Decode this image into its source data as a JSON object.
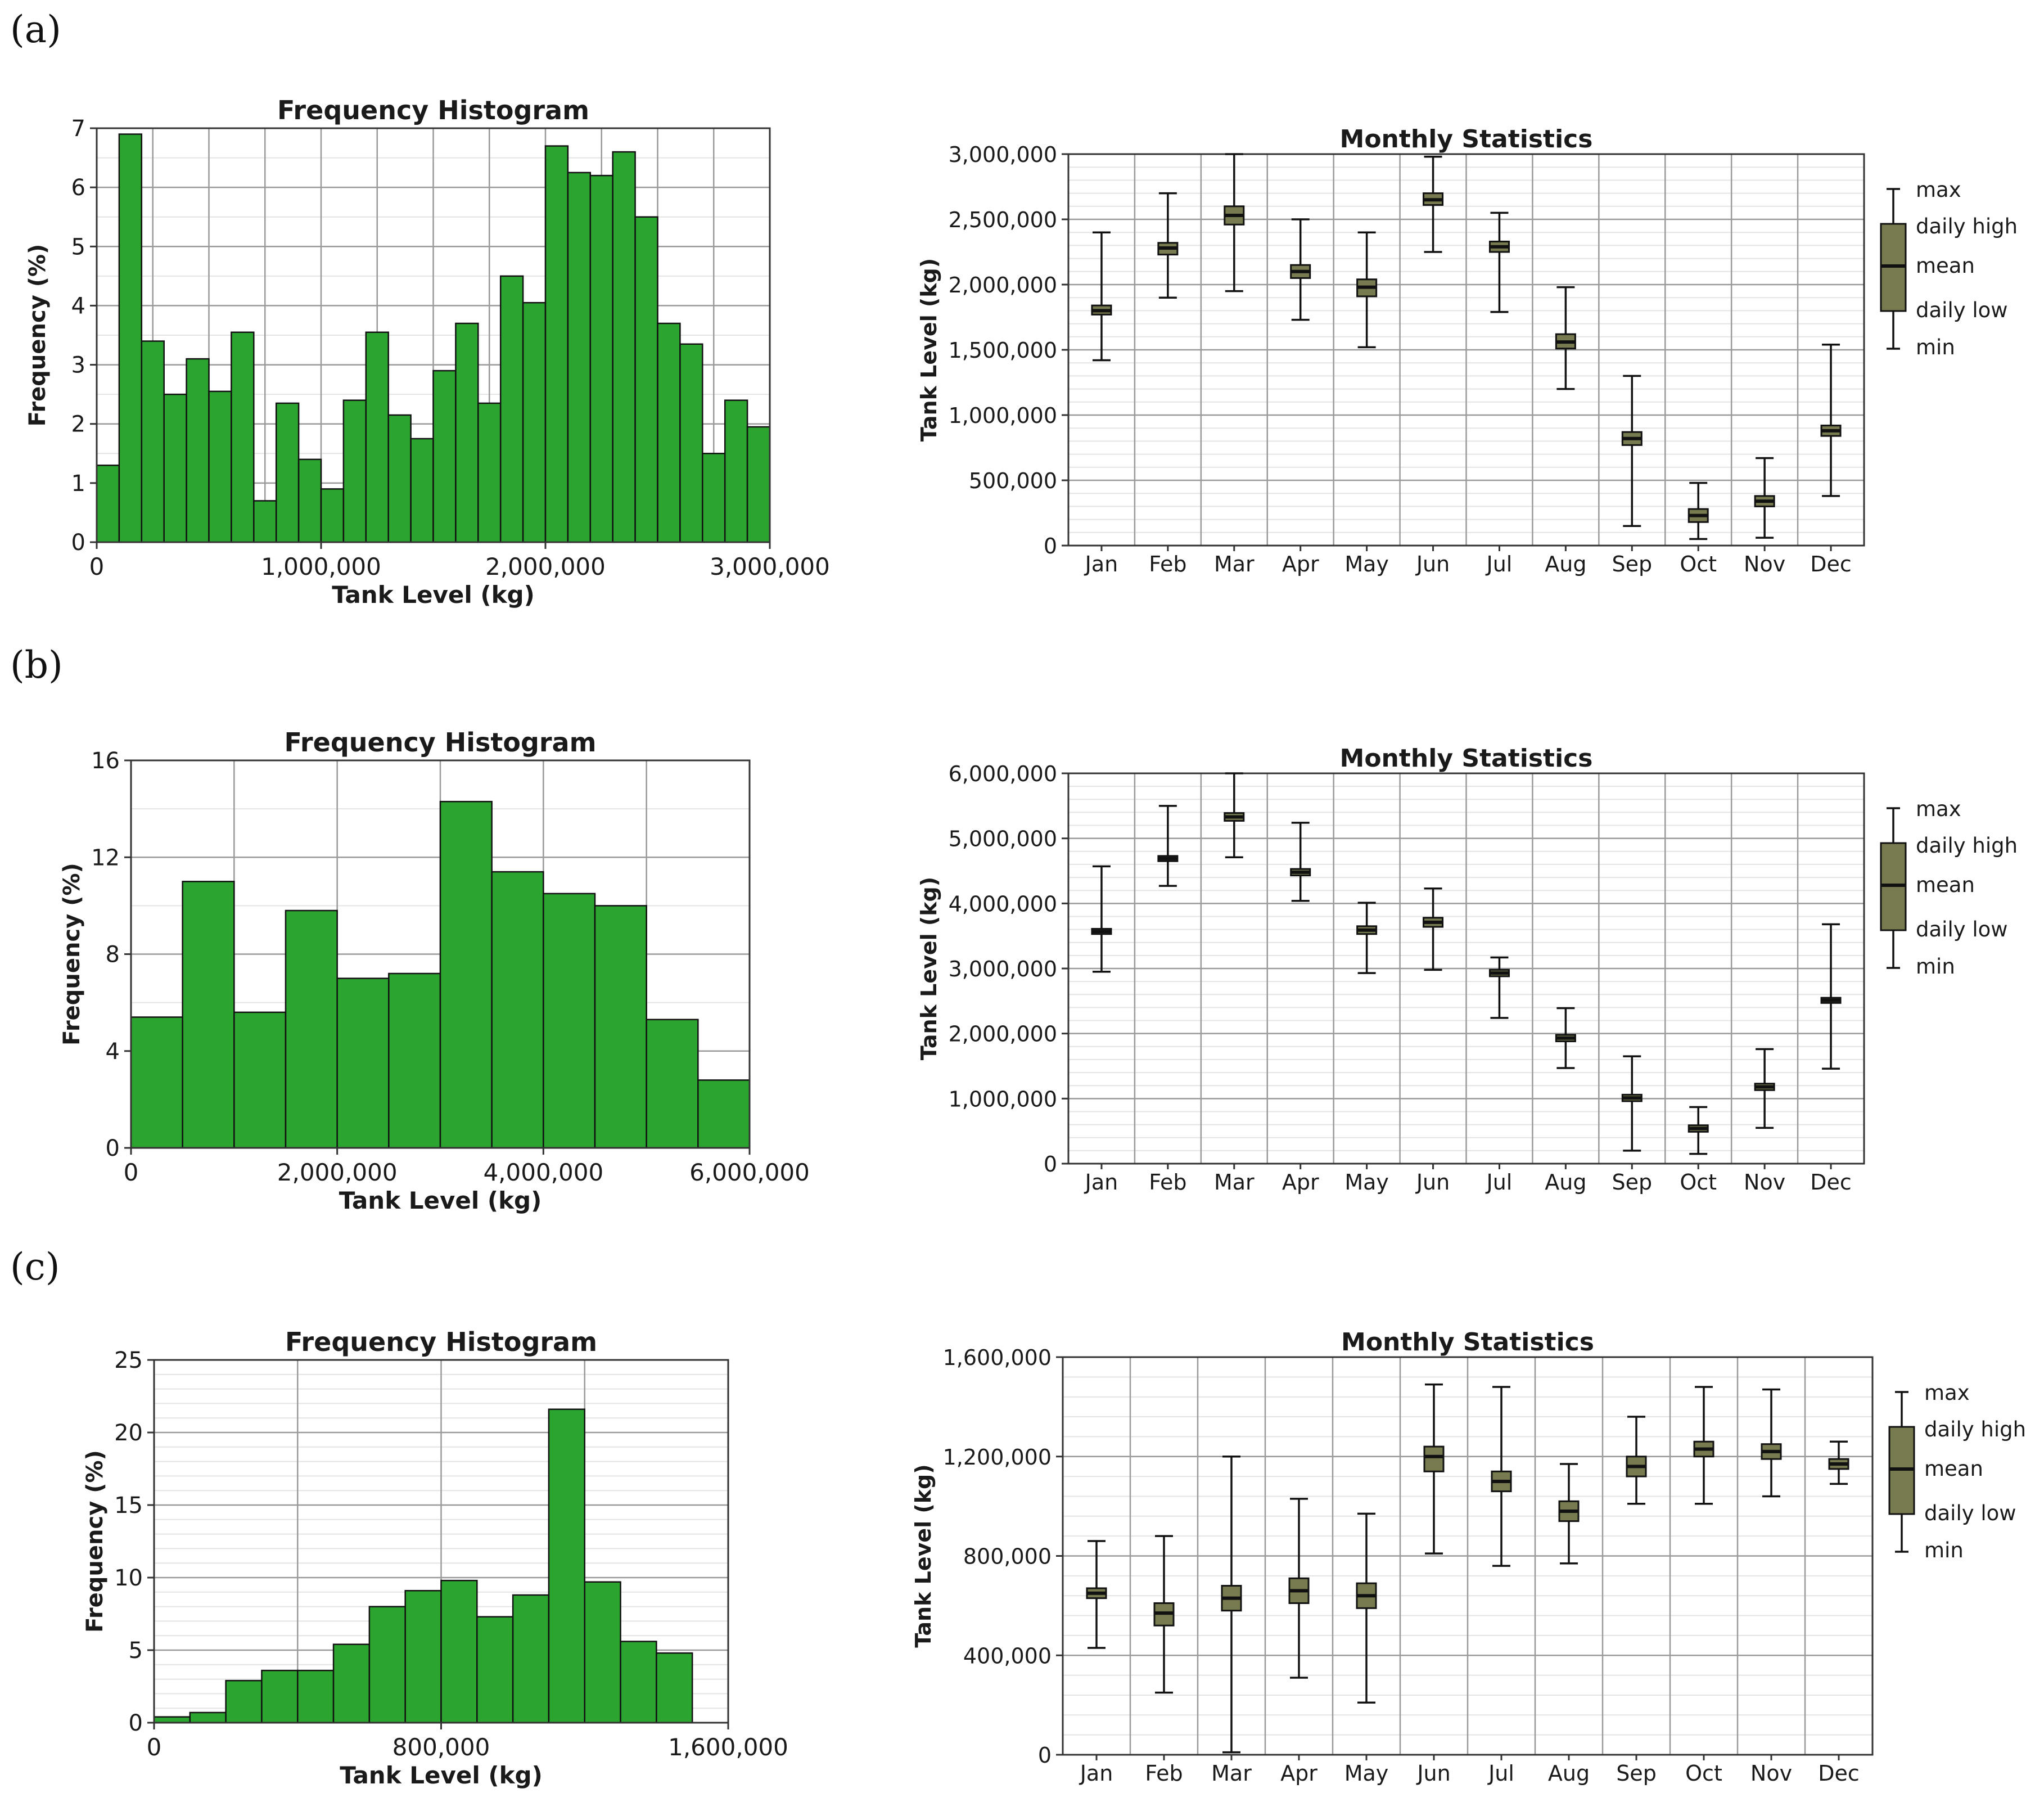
{
  "panels": [
    {
      "label": "(a)"
    },
    {
      "label": "(b)"
    },
    {
      "label": "(c)"
    }
  ],
  "colors": {
    "bar_fill": "#2ca530",
    "bar_stroke": "#111111",
    "box_fill": "#787a50",
    "grid_major": "#9a9a9a",
    "grid_minor": "#e4e4e4"
  },
  "legend": {
    "max": "max",
    "daily_high": "daily high",
    "mean": "mean",
    "daily_low": "daily low",
    "min": "min"
  },
  "chart_data": [
    {
      "id": "a-hist",
      "type": "bar",
      "title": "Frequency Histogram",
      "xlabel": "Tank Level (kg)",
      "ylabel": "Frequency (%)",
      "xlim": [
        0,
        3000000
      ],
      "ylim": [
        0,
        7
      ],
      "xticks": [
        0,
        1000000,
        2000000,
        3000000
      ],
      "xtick_labels": [
        "0",
        "1,000,000",
        "2,000,000",
        "3,000,000"
      ],
      "yticks": [
        0,
        1,
        2,
        3,
        4,
        5,
        6,
        7
      ],
      "ytick_labels": [
        "0",
        "1",
        "2",
        "3",
        "4",
        "5",
        "6",
        "7"
      ],
      "xgrid": [
        0,
        250000,
        500000,
        750000,
        1000000,
        1250000,
        1500000,
        1750000,
        2000000,
        2250000,
        2500000,
        2750000,
        3000000
      ],
      "ygrid_minor": [
        0.5,
        1.5,
        2.5,
        3.5,
        4.5,
        5.5,
        6.5
      ],
      "bin_edges": [
        0,
        100000,
        200000,
        300000,
        400000,
        500000,
        600000,
        700000,
        800000,
        900000,
        1000000,
        1100000,
        1200000,
        1300000,
        1400000,
        1500000,
        1600000,
        1700000,
        1800000,
        1900000,
        2000000,
        2100000,
        2200000,
        2300000,
        2400000,
        2500000,
        2600000,
        2700000,
        2800000,
        2900000,
        3000000
      ],
      "values": [
        1.3,
        6.9,
        3.4,
        2.5,
        3.1,
        2.55,
        3.55,
        0.7,
        2.35,
        1.4,
        0.9,
        2.4,
        3.55,
        2.15,
        1.75,
        2.9,
        3.7,
        2.35,
        4.5,
        4.05,
        6.7,
        6.25,
        6.2,
        6.6,
        5.5,
        3.7,
        3.35,
        1.5,
        2.4,
        1.95
      ]
    },
    {
      "id": "a-box",
      "type": "box",
      "title": "Monthly Statistics",
      "ylabel": "Tank Level (kg)",
      "ylim": [
        0,
        3000000
      ],
      "yticks": [
        0,
        500000,
        1000000,
        1500000,
        2000000,
        2500000,
        3000000
      ],
      "ytick_labels": [
        "0",
        "500,000",
        "1,000,000",
        "1,500,000",
        "2,000,000",
        "2,500,000",
        "3,000,000"
      ],
      "ygrid_minor_step": 100000,
      "categories": [
        "Jan",
        "Feb",
        "Mar",
        "Apr",
        "May",
        "Jun",
        "Jul",
        "Aug",
        "Sep",
        "Oct",
        "Nov",
        "Dec"
      ],
      "min": [
        1420000,
        1900000,
        1950000,
        1730000,
        1520000,
        2250000,
        1790000,
        1200000,
        150000,
        50000,
        60000,
        380000
      ],
      "low": [
        1770000,
        2230000,
        2460000,
        2050000,
        1910000,
        2610000,
        2250000,
        1510000,
        770000,
        180000,
        300000,
        840000
      ],
      "mean": [
        1800000,
        2280000,
        2530000,
        2100000,
        1980000,
        2650000,
        2290000,
        1560000,
        820000,
        230000,
        340000,
        880000
      ],
      "high": [
        1840000,
        2320000,
        2600000,
        2150000,
        2040000,
        2700000,
        2330000,
        1620000,
        870000,
        280000,
        380000,
        920000
      ],
      "max": [
        2400000,
        2700000,
        3000000,
        2500000,
        2400000,
        2980000,
        2550000,
        1980000,
        1300000,
        480000,
        670000,
        1540000
      ]
    },
    {
      "id": "b-hist",
      "type": "bar",
      "title": "Frequency Histogram",
      "xlabel": "Tank Level (kg)",
      "ylabel": "Frequency (%)",
      "xlim": [
        0,
        6000000
      ],
      "ylim": [
        0,
        16
      ],
      "xticks": [
        0,
        2000000,
        4000000,
        6000000
      ],
      "xtick_labels": [
        "0",
        "2,000,000",
        "4,000,000",
        "6,000,000"
      ],
      "yticks": [
        0,
        4,
        8,
        12,
        16
      ],
      "ytick_labels": [
        "0",
        "4",
        "8",
        "12",
        "16"
      ],
      "xgrid": [
        0,
        1000000,
        2000000,
        3000000,
        4000000,
        5000000,
        6000000
      ],
      "ygrid_minor": [
        2,
        6,
        10,
        14
      ],
      "bin_edges": [
        0,
        500000,
        1000000,
        1500000,
        2000000,
        2500000,
        3000000,
        3500000,
        4000000,
        4500000,
        5000000,
        5500000,
        6000000
      ],
      "values": [
        5.4,
        11.0,
        5.6,
        9.8,
        7.0,
        7.2,
        14.3,
        11.4,
        10.5,
        10.0,
        5.3,
        2.8
      ]
    },
    {
      "id": "b-box",
      "type": "box",
      "title": "Monthly Statistics",
      "ylabel": "Tank Level (kg)",
      "ylim": [
        0,
        6000000
      ],
      "yticks": [
        0,
        1000000,
        2000000,
        3000000,
        4000000,
        5000000,
        6000000
      ],
      "ytick_labels": [
        "0",
        "1,000,000",
        "2,000,000",
        "3,000,000",
        "4,000,000",
        "5,000,000",
        "6,000,000"
      ],
      "ygrid_minor_step": 200000,
      "categories": [
        "Jan",
        "Feb",
        "Mar",
        "Apr",
        "May",
        "Jun",
        "Jul",
        "Aug",
        "Sep",
        "Oct",
        "Nov",
        "Dec"
      ],
      "min": [
        2950000,
        4270000,
        4710000,
        4040000,
        2930000,
        2980000,
        2240000,
        1470000,
        200000,
        150000,
        550000,
        1460000
      ],
      "low": [
        3530000,
        4650000,
        5270000,
        4430000,
        3530000,
        3640000,
        2880000,
        1880000,
        960000,
        490000,
        1130000,
        2470000
      ],
      "mean": [
        3570000,
        4690000,
        5330000,
        4480000,
        3590000,
        3710000,
        2930000,
        1930000,
        1010000,
        540000,
        1180000,
        2510000
      ],
      "high": [
        3610000,
        4730000,
        5390000,
        4530000,
        3650000,
        3780000,
        2980000,
        1980000,
        1060000,
        590000,
        1230000,
        2550000
      ],
      "max": [
        4570000,
        5500000,
        6000000,
        5240000,
        4010000,
        4230000,
        3170000,
        2390000,
        1650000,
        870000,
        1760000,
        3680000
      ]
    },
    {
      "id": "c-hist",
      "type": "bar",
      "title": "Frequency Histogram",
      "xlabel": "Tank Level (kg)",
      "ylabel": "Frequency (%)",
      "xlim": [
        0,
        1600000
      ],
      "ylim": [
        0,
        25
      ],
      "xticks": [
        0,
        800000,
        1600000
      ],
      "xtick_labels": [
        "0",
        "800,000",
        "1,600,000"
      ],
      "yticks": [
        0,
        5,
        10,
        15,
        20,
        25
      ],
      "ytick_labels": [
        "0",
        "5",
        "10",
        "15",
        "20",
        "25"
      ],
      "xgrid": [
        0,
        400000,
        800000,
        1200000,
        1600000
      ],
      "ygrid_minor": [
        1,
        2,
        3,
        4,
        6,
        7,
        8,
        9,
        11,
        12,
        13,
        14,
        16,
        17,
        18,
        19,
        21,
        22,
        23,
        24
      ],
      "bin_edges": [
        0,
        100000,
        200000,
        300000,
        400000,
        500000,
        600000,
        700000,
        800000,
        900000,
        1000000,
        1100000,
        1200000,
        1300000,
        1400000,
        1500000
      ],
      "values": [
        0.4,
        0.7,
        2.9,
        3.6,
        3.6,
        5.4,
        8.0,
        9.1,
        9.8,
        7.3,
        8.8,
        21.6,
        9.7,
        5.6,
        4.8
      ]
    },
    {
      "id": "c-box",
      "type": "box",
      "title": "Monthly Statistics",
      "ylabel": "Tank Level (kg)",
      "ylim": [
        0,
        1600000
      ],
      "yticks": [
        0,
        400000,
        800000,
        1200000,
        1600000
      ],
      "ytick_labels": [
        "0",
        "400,000",
        "800,000",
        "1,200,000",
        "1,600,000"
      ],
      "ygrid_minor_step": 80000,
      "categories": [
        "Jan",
        "Feb",
        "Mar",
        "Apr",
        "May",
        "Jun",
        "Jul",
        "Aug",
        "Sep",
        "Oct",
        "Nov",
        "Dec"
      ],
      "min": [
        430000,
        250000,
        10000,
        310000,
        210000,
        810000,
        760000,
        770000,
        1010000,
        1010000,
        1040000,
        1090000
      ],
      "low": [
        630000,
        520000,
        580000,
        610000,
        590000,
        1140000,
        1060000,
        940000,
        1120000,
        1200000,
        1190000,
        1150000
      ],
      "mean": [
        650000,
        570000,
        630000,
        660000,
        640000,
        1200000,
        1100000,
        980000,
        1160000,
        1230000,
        1220000,
        1170000
      ],
      "high": [
        670000,
        610000,
        680000,
        710000,
        690000,
        1240000,
        1140000,
        1020000,
        1200000,
        1260000,
        1250000,
        1190000
      ],
      "max": [
        860000,
        880000,
        1200000,
        1030000,
        970000,
        1490000,
        1480000,
        1170000,
        1360000,
        1480000,
        1470000,
        1260000
      ]
    }
  ]
}
